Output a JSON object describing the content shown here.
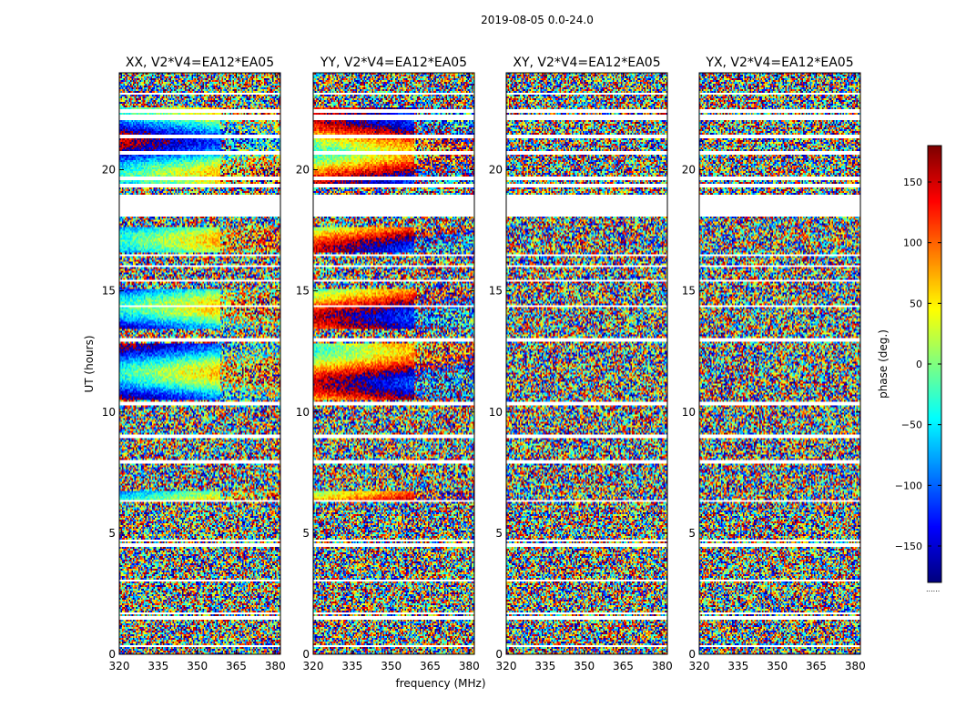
{
  "chart_data": {
    "type": "heatmap",
    "title": "2019-08-05 0.0-24.0",
    "xlabel": "frequency (MHz)",
    "ylabel": "UT (hours)",
    "xlim": [
      320,
      382
    ],
    "ylim": [
      0,
      24
    ],
    "xticks": [
      320,
      335,
      350,
      365,
      380
    ],
    "yticks": [
      0,
      5,
      10,
      15,
      20
    ],
    "colormap": "jet",
    "colorbar": {
      "label": "phase (deg.)",
      "range": [
        -180,
        180
      ],
      "ticks": [
        -150,
        -100,
        -50,
        0,
        50,
        100,
        150
      ],
      "tick_labels": [
        "−150",
        "−100",
        "−50",
        "0",
        "50",
        "100",
        "150"
      ],
      "bottom_mark": "......"
    },
    "panels": [
      {
        "title": "XX, V2*V4=EA12*EA05",
        "pol": "XX",
        "coherent": "strong",
        "base_phase": -120
      },
      {
        "title": "YY, V2*V4=EA12*EA05",
        "pol": "YY",
        "coherent": "strong",
        "base_phase": 60
      },
      {
        "title": "XY, V2*V4=EA12*EA05",
        "pol": "XY",
        "coherent": "none",
        "base_phase": 0
      },
      {
        "title": "YX, V2*V4=EA12*EA05",
        "pol": "YX",
        "coherent": "none",
        "base_phase": 0
      }
    ],
    "flagged_time_ranges_hours": [
      [
        0.3,
        0.4
      ],
      [
        1.45,
        1.6
      ],
      [
        1.65,
        1.7
      ],
      [
        3.0,
        3.1
      ],
      [
        4.4,
        4.55
      ],
      [
        4.65,
        4.7
      ],
      [
        6.3,
        6.4
      ],
      [
        7.9,
        8.05
      ],
      [
        8.95,
        9.05
      ],
      [
        10.3,
        10.4
      ],
      [
        12.9,
        13.05
      ],
      [
        14.3,
        14.4
      ],
      [
        15.35,
        15.45
      ],
      [
        15.95,
        16.05
      ],
      [
        16.4,
        16.5
      ],
      [
        18.1,
        19.0
      ],
      [
        19.25,
        19.4
      ],
      [
        19.55,
        19.7
      ],
      [
        20.6,
        20.75
      ],
      [
        21.3,
        21.45
      ],
      [
        22.05,
        22.25
      ],
      [
        22.35,
        22.5
      ],
      [
        23.1,
        23.2
      ]
    ],
    "coherent_time_ranges_hours": [
      [
        6.4,
        6.75
      ],
      [
        10.5,
        12.8
      ],
      [
        13.4,
        15.1
      ],
      [
        16.6,
        17.6
      ],
      [
        19.4,
        22.6
      ]
    ]
  }
}
